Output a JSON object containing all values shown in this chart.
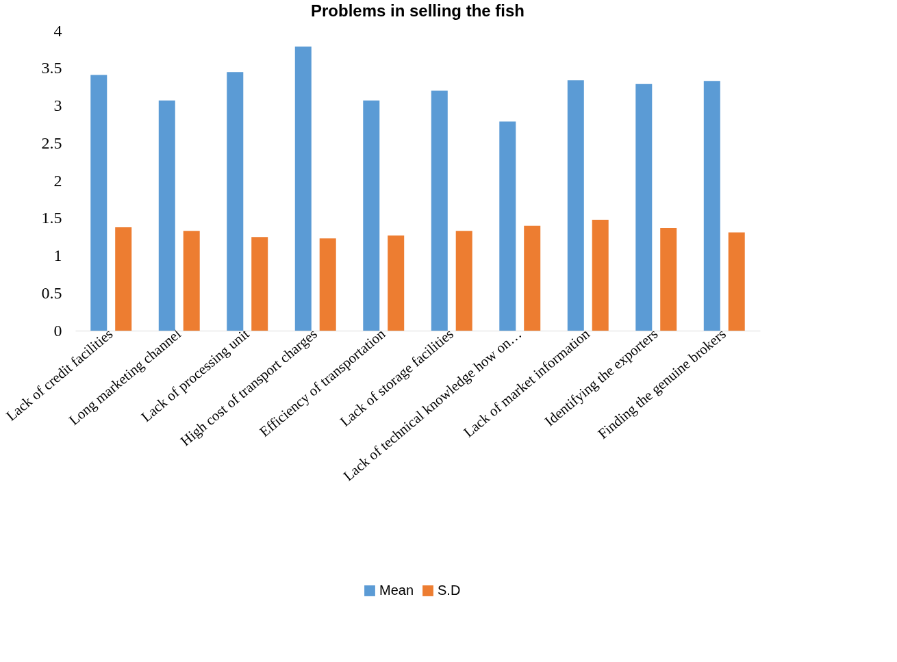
{
  "chart_data": {
    "type": "bar",
    "title": "Problems in selling the fish",
    "categories": [
      "Lack of credit facilities",
      "Long marketing channel",
      "Lack of processing unit",
      "High cost of transport charges",
      "Efficiency of transportation",
      "Lack of storage facilities",
      "Lack of technical knowledge how on…",
      "Lack of market information",
      "Identifying the exporters",
      "Finding the genuine brokers"
    ],
    "series": [
      {
        "name": "Mean",
        "color": "#5b9bd5",
        "values": [
          3.41,
          3.07,
          3.45,
          3.79,
          3.07,
          3.2,
          2.79,
          3.34,
          3.29,
          3.33
        ]
      },
      {
        "name": "S.D",
        "color": "#ed7d31",
        "values": [
          1.38,
          1.33,
          1.25,
          1.23,
          1.27,
          1.33,
          1.4,
          1.48,
          1.37,
          1.31
        ]
      }
    ],
    "ylim": [
      0,
      4
    ],
    "yticks": [
      0,
      0.5,
      1,
      1.5,
      2,
      2.5,
      3,
      3.5,
      4
    ],
    "grid": false,
    "legend": "bottom"
  }
}
